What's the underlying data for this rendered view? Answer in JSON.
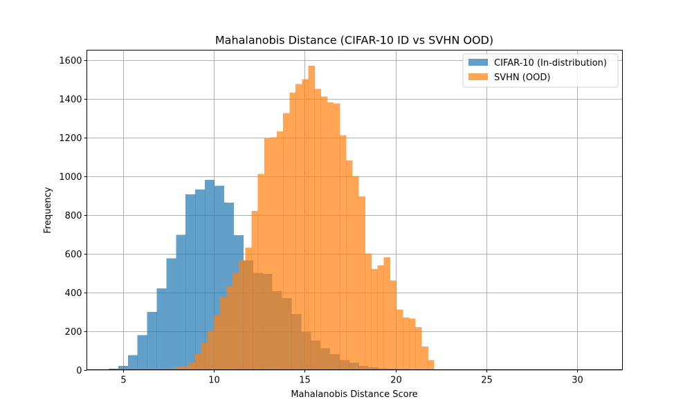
{
  "chart_data": {
    "type": "bar",
    "subtype": "histogram",
    "title": "Mahalanobis Distance (CIFAR-10 ID vs SVHN OOD)",
    "xlabel": "Mahalanobis Distance Score",
    "ylabel": "Frequency",
    "xlim": [
      3.0,
      32.5
    ],
    "ylim": [
      0,
      1650
    ],
    "xticks": [
      5,
      10,
      15,
      20,
      25,
      30
    ],
    "yticks": [
      0,
      200,
      400,
      600,
      800,
      1000,
      1200,
      1400,
      1600
    ],
    "grid": true,
    "legend_position": "top-right",
    "series": [
      {
        "name": "CIFAR-10 (In-distribution)",
        "color": "#1f77b4",
        "opacity": 0.7,
        "bin_edges": [
          4.2,
          4.73,
          5.26,
          5.79,
          6.32,
          6.85,
          7.38,
          7.91,
          8.44,
          8.97,
          9.5,
          10.03,
          10.56,
          11.09,
          11.62,
          12.15,
          12.68,
          13.21,
          13.74,
          14.27,
          14.8,
          15.33,
          15.86,
          16.39,
          16.92,
          17.45,
          17.98,
          18.51,
          19.04,
          19.57,
          20.1,
          20.63,
          21.16,
          21.69,
          22.22,
          22.75,
          23.28
        ],
        "counts": [
          5,
          20,
          75,
          178,
          298,
          420,
          575,
          697,
          905,
          930,
          980,
          950,
          862,
          695,
          565,
          500,
          495,
          405,
          370,
          288,
          195,
          150,
          110,
          80,
          50,
          35,
          20,
          12,
          8,
          5,
          3,
          2,
          2,
          1,
          1,
          1
        ]
      },
      {
        "name": "SVHN (OOD)",
        "color": "#ff7f0e",
        "opacity": 0.7,
        "bin_edges": [
          7.2,
          7.91,
          8.26,
          8.6,
          8.95,
          9.3,
          9.64,
          9.99,
          10.34,
          10.69,
          11.03,
          11.38,
          11.73,
          12.07,
          12.42,
          12.77,
          13.11,
          13.46,
          13.81,
          14.16,
          14.5,
          14.85,
          15.2,
          15.54,
          15.89,
          16.24,
          16.58,
          16.93,
          17.28,
          17.63,
          17.97,
          18.32,
          18.67,
          19.01,
          19.36,
          19.71,
          20.05,
          20.4,
          20.75,
          21.09,
          21.44,
          21.79,
          22.13
        ],
        "counts": [
          5,
          15,
          20,
          35,
          80,
          140,
          200,
          280,
          375,
          430,
          500,
          565,
          630,
          820,
          1010,
          1195,
          1200,
          1230,
          1325,
          1430,
          1475,
          1500,
          1570,
          1450,
          1410,
          1380,
          1375,
          1210,
          1080,
          1000,
          895,
          600,
          520,
          540,
          580,
          460,
          310,
          270,
          265,
          220,
          120,
          50
        ]
      }
    ]
  }
}
